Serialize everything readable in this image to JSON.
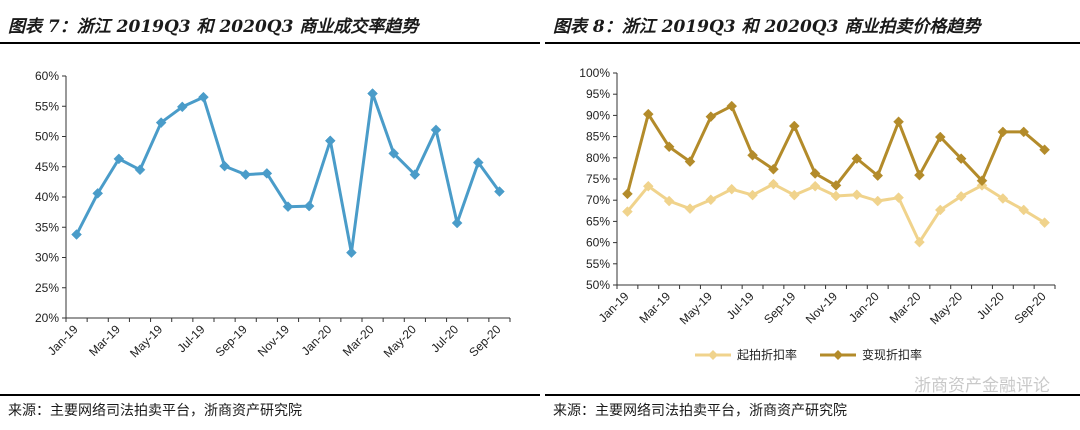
{
  "left": {
    "title": "图表 7：浙江 2019Q3 和 2020Q3 商业成交率趋势",
    "source": "来源：主要网络司法拍卖平台，浙商资产研究院"
  },
  "right": {
    "title": "图表 8：浙江 2019Q3 和 2020Q3 商业拍卖价格趋势",
    "source": "来源：主要网络司法拍卖平台，浙商资产研究院",
    "watermark": "浙商资产金融评论"
  },
  "colors": {
    "blue": "#4a9cc9",
    "light": "#f0d38c",
    "dark": "#b38b2a"
  },
  "chart_data": [
    {
      "type": "line",
      "title": "图表 7：浙江 2019Q3 和 2020Q3 商业成交率趋势",
      "categories": [
        "Jan-19",
        "Feb-19",
        "Mar-19",
        "Apr-19",
        "May-19",
        "Jun-19",
        "Jul-19",
        "Aug-19",
        "Sep-19",
        "Oct-19",
        "Nov-19",
        "Dec-19",
        "Jan-20",
        "Feb-20",
        "Mar-20",
        "Apr-20",
        "May-20",
        "Jun-20",
        "Jul-20",
        "Aug-20",
        "Sep-20"
      ],
      "tick_labels": [
        "Jan-19",
        "Mar-19",
        "May-19",
        "Jul-19",
        "Sep-19",
        "Nov-19",
        "Jan-20",
        "Mar-20",
        "May-20",
        "Jul-20",
        "Sep-20"
      ],
      "y_tick_labels": [
        "20%",
        "25%",
        "30%",
        "35%",
        "40%",
        "45%",
        "50%",
        "55%",
        "60%"
      ],
      "ylim": [
        20,
        60
      ],
      "series": [
        {
          "name": "成交率",
          "values": [
            33.8,
            40.6,
            46.3,
            44.5,
            52.3,
            54.9,
            56.5,
            45.1,
            43.7,
            43.9,
            38.4,
            38.5,
            49.3,
            30.8,
            57.1,
            47.2,
            43.7,
            51.1,
            35.7,
            45.7,
            40.9
          ]
        }
      ]
    },
    {
      "type": "line",
      "title": "图表 8：浙江 2019Q3 和 2020Q3 商业拍卖价格趋势",
      "categories": [
        "Jan-19",
        "Feb-19",
        "Mar-19",
        "Apr-19",
        "May-19",
        "Jun-19",
        "Jul-19",
        "Aug-19",
        "Sep-19",
        "Oct-19",
        "Nov-19",
        "Dec-19",
        "Jan-20",
        "Feb-20",
        "Mar-20",
        "Apr-20",
        "May-20",
        "Jun-20",
        "Jul-20",
        "Aug-20",
        "Sep-20"
      ],
      "tick_labels": [
        "Jan-19",
        "Mar-19",
        "May-19",
        "Jul-19",
        "Sep-19",
        "Nov-19",
        "Jan-20",
        "Mar-20",
        "May-20",
        "Jul-20",
        "Sep-20"
      ],
      "y_tick_labels": [
        "50%",
        "55%",
        "60%",
        "65%",
        "70%",
        "75%",
        "80%",
        "85%",
        "90%",
        "95%",
        "100%"
      ],
      "ylim": [
        50,
        100
      ],
      "series": [
        {
          "name": "起拍折扣率",
          "values": [
            67.3,
            73.3,
            69.8,
            68.0,
            70.1,
            72.6,
            71.2,
            73.8,
            71.2,
            73.3,
            71.0,
            71.3,
            69.8,
            70.6,
            60.1,
            67.7,
            70.9,
            73.5,
            70.4,
            67.7,
            64.7
          ]
        },
        {
          "name": "变现折扣率",
          "values": [
            71.5,
            90.3,
            82.6,
            79.1,
            89.7,
            92.2,
            80.6,
            77.3,
            87.5,
            76.3,
            73.5,
            79.8,
            75.8,
            88.5,
            75.9,
            84.9,
            79.8,
            74.6,
            86.1,
            86.1,
            81.9
          ]
        }
      ],
      "legend": [
        "起拍折扣率",
        "变现折扣率"
      ]
    }
  ]
}
